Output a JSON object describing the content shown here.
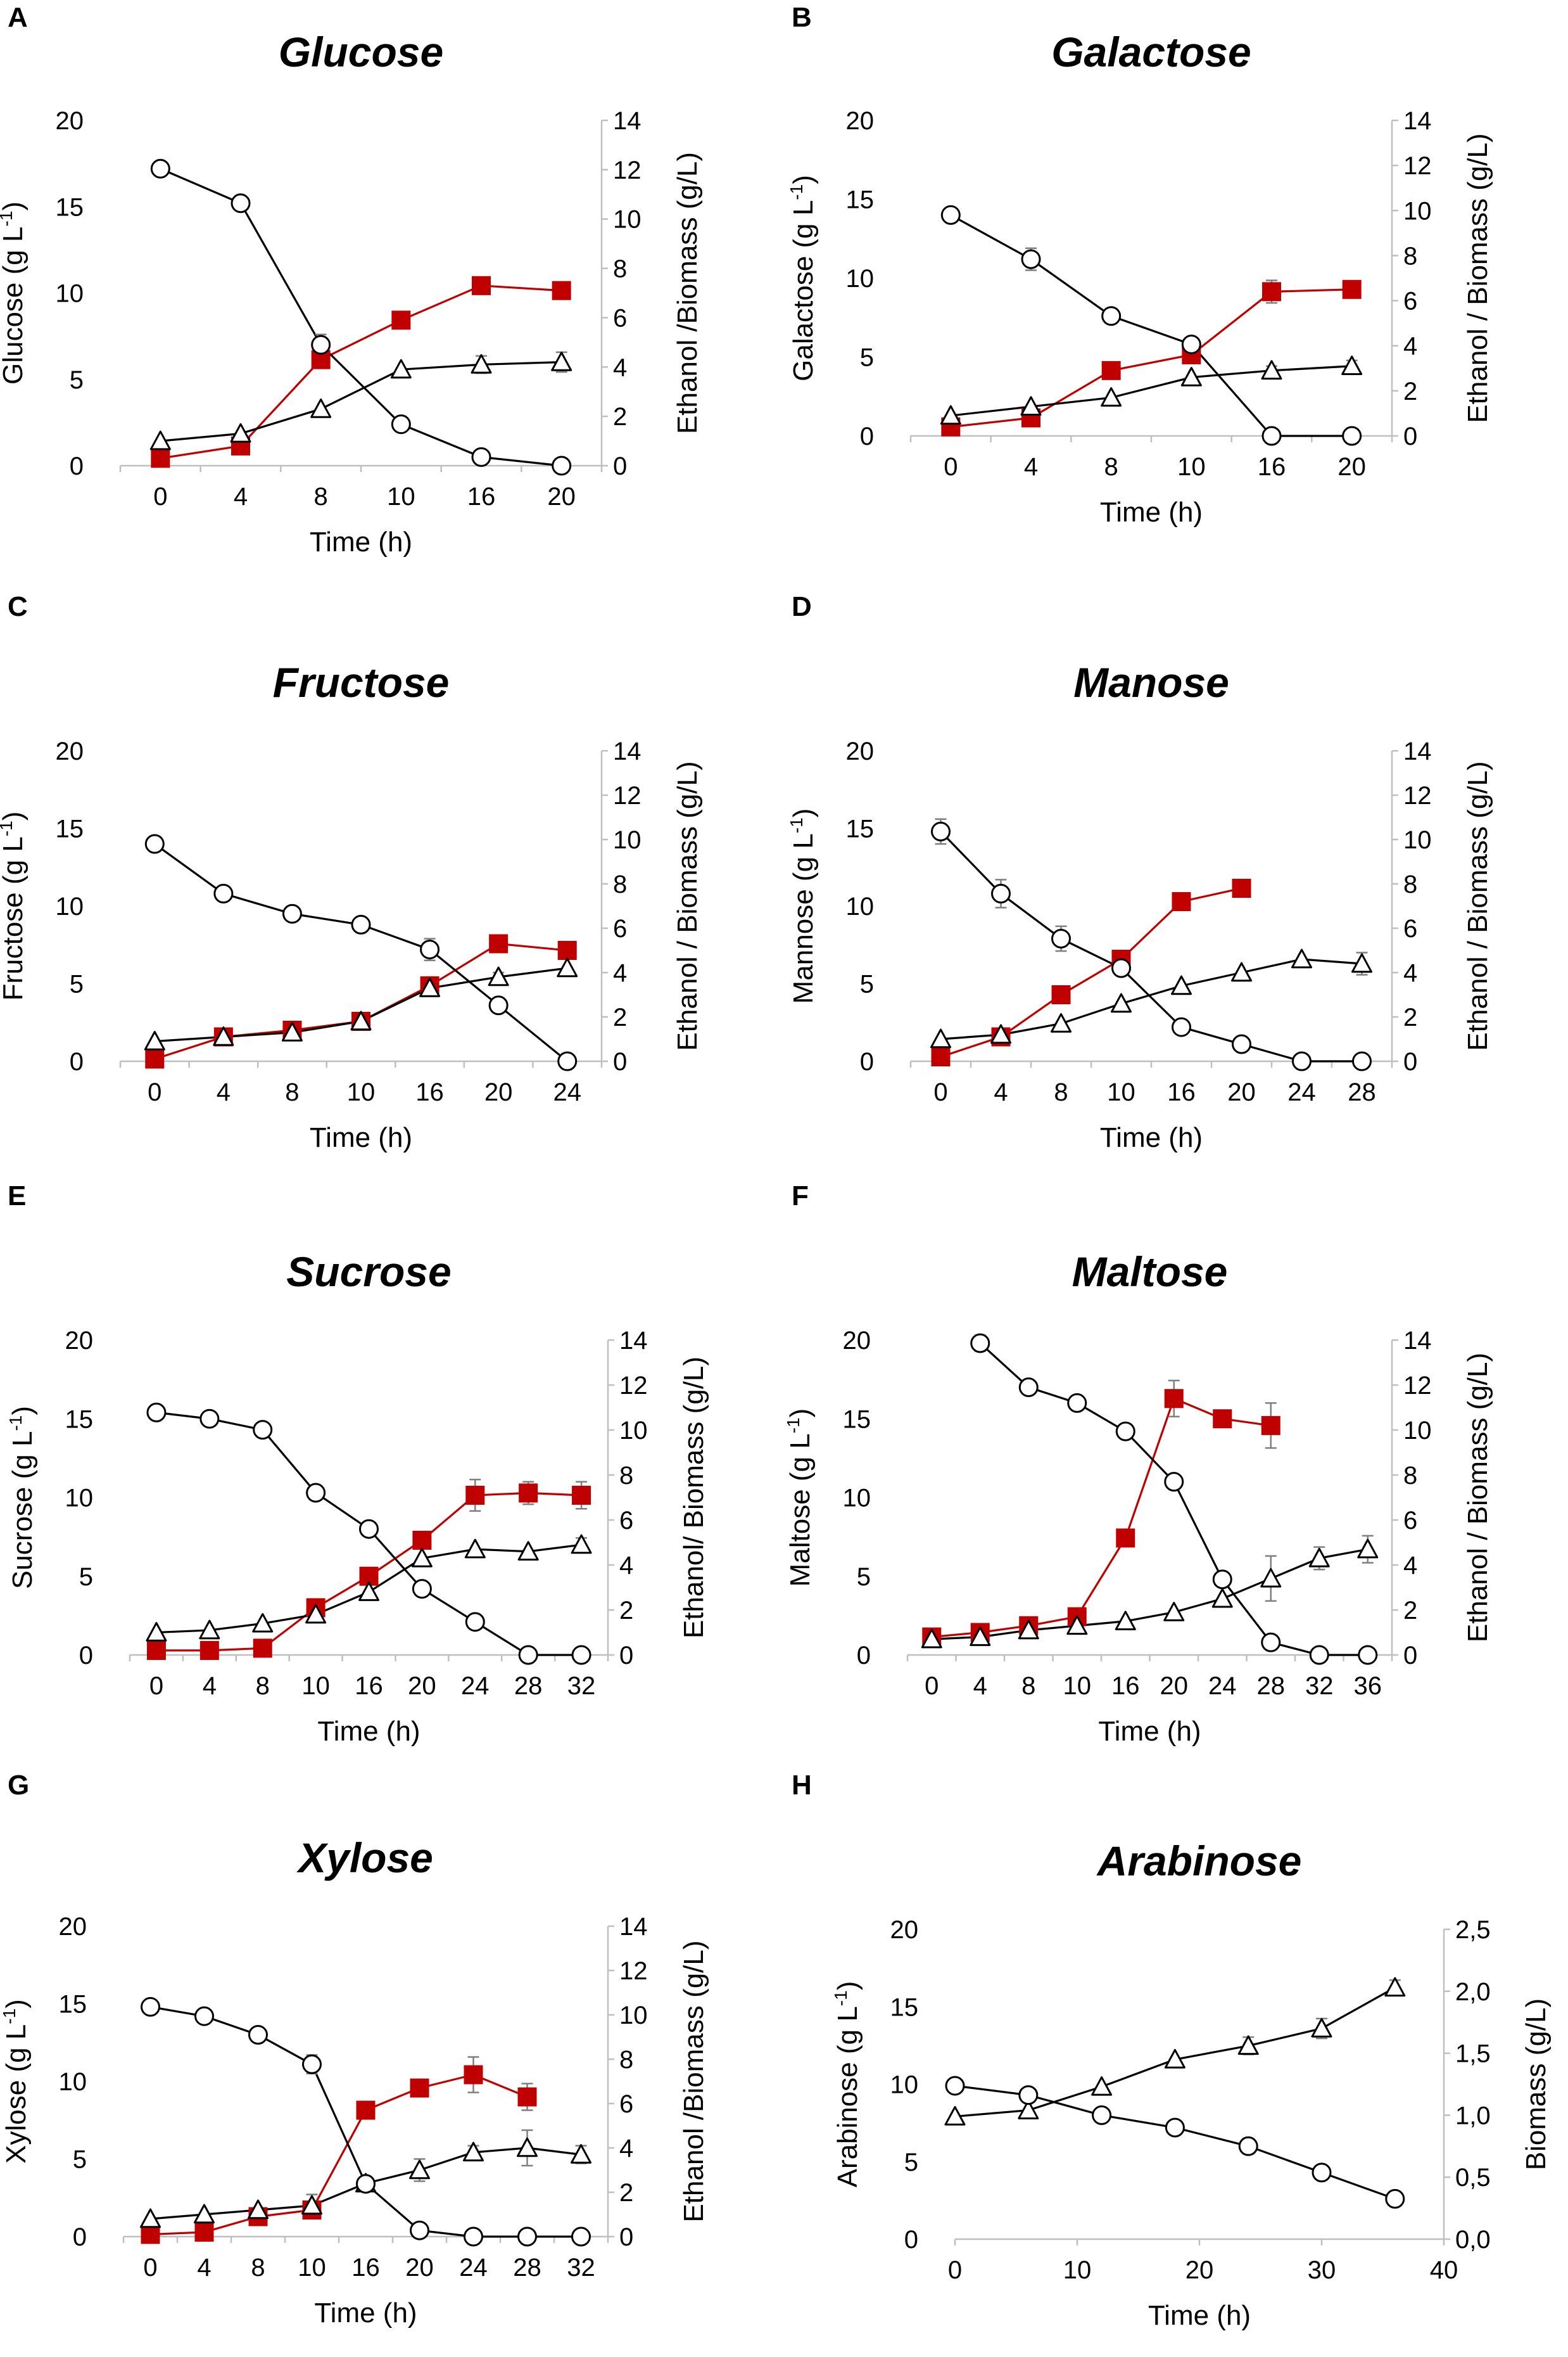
{
  "figure": {
    "colors": {
      "ethanol": "#c00000",
      "sugar": "#ffffff",
      "biomass": "#ffffff",
      "line_black": "#000000",
      "axis": "#bfbfbf",
      "error": "#7f7f7f"
    },
    "time_axis_label": "Time (h)"
  },
  "chart_data": [
    {
      "panel": "A",
      "title": "Glucose",
      "type": "line",
      "x_mode": "categorical",
      "categories": [
        "0",
        "4",
        "8",
        "10",
        "16",
        "20"
      ],
      "ylabel": "Glucose (g L",
      "ylabel_sup": "-1",
      "ylabel_close": ")",
      "y2label": "Ethanol /Biomass (g/L)",
      "ylim": [
        0,
        20
      ],
      "yticks": [
        "0",
        "5",
        "10",
        "15",
        "20"
      ],
      "y2lim": [
        0,
        14
      ],
      "y2ticks": [
        "0",
        "2",
        "4",
        "6",
        "8",
        "10",
        "12",
        "14"
      ],
      "xlabel": "Time (h)",
      "series": [
        {
          "name": "Glucose",
          "axis": "left",
          "marker": "circle",
          "values": [
            17.2,
            15.2,
            7.0,
            2.4,
            0.5,
            0.0
          ],
          "errors": [
            0,
            0,
            0.6,
            0,
            0,
            0
          ]
        },
        {
          "name": "Ethanol",
          "axis": "right",
          "marker": "square",
          "values": [
            0.3,
            0.8,
            4.3,
            5.9,
            7.3,
            7.1
          ],
          "errors": [
            0,
            0,
            0.3,
            0.3,
            0.3,
            0.3
          ]
        },
        {
          "name": "Biomass",
          "axis": "right",
          "marker": "triangle",
          "values": [
            1.0,
            1.3,
            2.3,
            3.9,
            4.1,
            4.2
          ],
          "errors": [
            0,
            0,
            0,
            0,
            0.35,
            0.4
          ]
        }
      ]
    },
    {
      "panel": "B",
      "title": "Galactose",
      "type": "line",
      "x_mode": "categorical",
      "categories": [
        "0",
        "4",
        "8",
        "10",
        "16",
        "20"
      ],
      "ylabel": "Galactose (g L",
      "ylabel_sup": "-1",
      "ylabel_close": ")",
      "y2label": "Ethanol / Biomass (g/L)",
      "ylim": [
        0,
        20
      ],
      "yticks": [
        "0",
        "5",
        "10",
        "15",
        "20"
      ],
      "y2lim": [
        0,
        14
      ],
      "y2ticks": [
        "0",
        "2",
        "4",
        "6",
        "8",
        "10",
        "12",
        "14"
      ],
      "xlabel": "Time (h)",
      "series": [
        {
          "name": "Galactose",
          "axis": "left",
          "marker": "circle",
          "values": [
            14.0,
            11.2,
            7.6,
            5.8,
            0.0,
            0.0
          ],
          "errors": [
            0,
            0.7,
            0.3,
            0,
            0,
            0
          ]
        },
        {
          "name": "Ethanol",
          "axis": "right",
          "marker": "square",
          "values": [
            0.4,
            0.8,
            2.9,
            3.6,
            6.4,
            6.5
          ],
          "errors": [
            0,
            0,
            0,
            0,
            0.5,
            0.2
          ]
        },
        {
          "name": "Biomass",
          "axis": "right",
          "marker": "triangle",
          "values": [
            0.9,
            1.3,
            1.7,
            2.6,
            2.9,
            3.1
          ],
          "errors": [
            0,
            0,
            0,
            0,
            0.2,
            0.25
          ]
        }
      ]
    },
    {
      "panel": "C",
      "title": "Fructose",
      "type": "line",
      "x_mode": "categorical",
      "categories": [
        "0",
        "4",
        "8",
        "10",
        "16",
        "20",
        "24"
      ],
      "ylabel": "Fructose (g L",
      "ylabel_sup": "-1",
      "ylabel_close": ")",
      "y2label": "Ethanol / Biomass (g/L)",
      "ylim": [
        0,
        20
      ],
      "yticks": [
        "0",
        "5",
        "10",
        "15",
        "20"
      ],
      "y2lim": [
        0,
        14
      ],
      "y2ticks": [
        "0",
        "2",
        "4",
        "6",
        "8",
        "10",
        "12",
        "14"
      ],
      "xlabel": "Time (h)",
      "series": [
        {
          "name": "Fructose",
          "axis": "left",
          "marker": "circle",
          "values": [
            14.0,
            10.8,
            9.5,
            8.8,
            7.2,
            3.6,
            0.0
          ],
          "errors": [
            0,
            0,
            0,
            0,
            0.7,
            0,
            0
          ]
        },
        {
          "name": "Ethanol",
          "axis": "right",
          "marker": "square",
          "values": [
            0.1,
            1.1,
            1.4,
            1.8,
            3.4,
            5.3,
            5.0
          ],
          "errors": [
            0,
            0,
            0,
            0,
            0.4,
            0.2,
            0
          ]
        },
        {
          "name": "Biomass",
          "axis": "right",
          "marker": "triangle",
          "values": [
            0.9,
            1.1,
            1.3,
            1.8,
            3.3,
            3.8,
            4.2
          ],
          "errors": [
            0,
            0,
            0,
            0,
            0.3,
            0.2,
            0
          ]
        }
      ]
    },
    {
      "panel": "D",
      "title": "Manose",
      "type": "line",
      "x_mode": "categorical",
      "categories": [
        "0",
        "4",
        "8",
        "10",
        "16",
        "20",
        "24",
        "28"
      ],
      "ylabel": "Mannose  (g L",
      "ylabel_sup": "-1",
      "ylabel_close": ")",
      "y2label": "Ethanol / Biomass (g/L)",
      "ylim": [
        0,
        20
      ],
      "yticks": [
        "0",
        "5",
        "10",
        "15",
        "20"
      ],
      "y2lim": [
        0,
        14
      ],
      "y2ticks": [
        "0",
        "2",
        "4",
        "6",
        "8",
        "10",
        "12",
        "14"
      ],
      "xlabel": "Time (h)",
      "series": [
        {
          "name": "Mannose",
          "axis": "left",
          "marker": "circle",
          "values": [
            14.8,
            10.8,
            7.9,
            6.0,
            2.2,
            1.1,
            0.0,
            0.0
          ],
          "errors": [
            0.8,
            0.9,
            0.8,
            0,
            0,
            0,
            0,
            0
          ]
        },
        {
          "name": "Ethanol",
          "axis": "right",
          "marker": "square",
          "values": [
            0.2,
            1.1,
            3.0,
            4.6,
            7.2,
            7.8,
            null,
            null
          ],
          "errors": [
            0,
            0,
            0,
            0,
            0,
            0,
            0,
            0
          ]
        },
        {
          "name": "Biomass",
          "axis": "right",
          "marker": "triangle",
          "values": [
            1.0,
            1.2,
            1.7,
            2.6,
            3.4,
            4.0,
            4.6,
            4.4
          ],
          "errors": [
            0,
            0,
            0,
            0,
            0,
            0,
            0,
            0.5
          ]
        }
      ]
    },
    {
      "panel": "E",
      "title": "Sucrose",
      "type": "line",
      "x_mode": "categorical",
      "categories": [
        "0",
        "4",
        "8",
        "10",
        "16",
        "20",
        "24",
        "28",
        "32"
      ],
      "ylabel": "Sucrose (g L",
      "ylabel_sup": "-1",
      "ylabel_close": ")",
      "y2label": "Ethanol/ Biomass (g/L)",
      "ylim": [
        0,
        20
      ],
      "yticks": [
        "0",
        "5",
        "10",
        "15",
        "20"
      ],
      "y2lim": [
        0,
        14
      ],
      "y2ticks": [
        "0",
        "2",
        "4",
        "6",
        "8",
        "10",
        "12",
        "14"
      ],
      "xlabel": "Time (h)",
      "series": [
        {
          "name": "Sucrose",
          "axis": "left",
          "marker": "circle",
          "values": [
            15.4,
            15.0,
            14.3,
            10.3,
            8.0,
            4.2,
            2.1,
            0.0,
            0.0
          ],
          "errors": [
            0,
            0.4,
            0,
            0,
            0,
            0,
            0,
            0,
            0
          ]
        },
        {
          "name": "Ethanol",
          "axis": "right",
          "marker": "square",
          "values": [
            0.2,
            0.2,
            0.3,
            2.1,
            3.5,
            5.1,
            7.1,
            7.2,
            7.1
          ],
          "errors": [
            0,
            0,
            0,
            0,
            0,
            0,
            0.7,
            0.5,
            0.6
          ]
        },
        {
          "name": "Biomass",
          "axis": "right",
          "marker": "triangle",
          "values": [
            1.0,
            1.1,
            1.4,
            1.8,
            2.8,
            4.3,
            4.7,
            4.6,
            4.9
          ],
          "errors": [
            0,
            0,
            0,
            0,
            0,
            0,
            0,
            0,
            0.3
          ]
        }
      ]
    },
    {
      "panel": "F",
      "title": "Maltose",
      "type": "line",
      "x_mode": "categorical",
      "categories": [
        "0",
        "4",
        "8",
        "10",
        "16",
        "20",
        "24",
        "28",
        "32",
        "36"
      ],
      "ylabel": "Maltose (g L",
      "ylabel_sup": "-1",
      "ylabel_close": ")",
      "y2label": "Ethanol / Biomass (g/L)",
      "ylim": [
        0,
        20
      ],
      "yticks": [
        "0",
        "5",
        "10",
        "15",
        "20"
      ],
      "y2lim": [
        0,
        14
      ],
      "y2ticks": [
        "0",
        "2",
        "4",
        "6",
        "8",
        "10",
        "12",
        "14"
      ],
      "xlabel": "Time (h)",
      "series": [
        {
          "name": "Maltose",
          "axis": "left",
          "marker": "circle",
          "values": [
            null,
            19.8,
            17.0,
            16.0,
            14.2,
            11.0,
            4.8,
            0.8,
            0.0,
            0.0
          ],
          "errors": [
            0,
            0.5,
            0,
            0,
            0,
            0,
            0,
            0.4,
            0,
            0
          ]
        },
        {
          "name": "Ethanol",
          "axis": "right",
          "marker": "square",
          "values": [
            0.8,
            1.0,
            1.3,
            1.7,
            5.2,
            11.4,
            10.5,
            10.2,
            null,
            null
          ],
          "errors": [
            0,
            0,
            0,
            0,
            0,
            0.8,
            0,
            1.0,
            0,
            0
          ]
        },
        {
          "name": "Biomass",
          "axis": "right",
          "marker": "triangle",
          "values": [
            0.7,
            0.8,
            1.1,
            1.3,
            1.5,
            1.9,
            2.5,
            3.4,
            4.3,
            4.7
          ],
          "errors": [
            0,
            0,
            0,
            0,
            0,
            0,
            0,
            1.0,
            0.5,
            0.6
          ]
        }
      ]
    },
    {
      "panel": "G",
      "title": "Xylose",
      "type": "line",
      "x_mode": "categorical",
      "categories": [
        "0",
        "4",
        "8",
        "10",
        "16",
        "20",
        "24",
        "28",
        "32"
      ],
      "ylabel": "Xylose (g L",
      "ylabel_sup": "-1",
      "ylabel_close": ")",
      "y2label": "Ethanol /Biomass (g/L)",
      "ylim": [
        0,
        20
      ],
      "yticks": [
        "0",
        "5",
        "10",
        "15",
        "20"
      ],
      "y2lim": [
        0,
        14
      ],
      "y2ticks": [
        "0",
        "2",
        "4",
        "6",
        "8",
        "10",
        "12",
        "14"
      ],
      "xlabel": "Time (h)",
      "series": [
        {
          "name": "Xylose",
          "axis": "left",
          "marker": "circle",
          "values": [
            14.8,
            14.2,
            13.0,
            11.1,
            3.4,
            0.4,
            0.0,
            0.0,
            0.0
          ],
          "errors": [
            0,
            0,
            0,
            0.6,
            0,
            0,
            0,
            0,
            0
          ]
        },
        {
          "name": "Ethanol",
          "axis": "right",
          "marker": "square",
          "values": [
            0.1,
            0.2,
            0.9,
            1.2,
            5.7,
            6.7,
            7.3,
            6.3,
            null
          ],
          "errors": [
            0,
            0,
            0,
            0,
            0,
            0,
            0.8,
            0.6,
            0
          ]
        },
        {
          "name": "Biomass",
          "axis": "right",
          "marker": "triangle",
          "values": [
            0.8,
            1.0,
            1.2,
            1.4,
            2.4,
            3.0,
            3.8,
            4.0,
            3.7
          ],
          "errors": [
            0,
            0,
            0,
            0.5,
            0,
            0.5,
            0.3,
            0.8,
            0.4
          ]
        }
      ]
    },
    {
      "panel": "H",
      "title": "Arabinose",
      "type": "line",
      "x_mode": "numeric",
      "xlim": [
        0,
        40
      ],
      "xticks": [
        "0",
        "10",
        "20",
        "30",
        "40"
      ],
      "ylabel": "Arabinose (g L",
      "ylabel_sup": "-1",
      "ylabel_close": ")",
      "y2label": "Biomass (g/L)",
      "ylim": [
        0,
        20
      ],
      "yticks": [
        "0",
        "5",
        "10",
        "15",
        "20"
      ],
      "y2lim": [
        0,
        2.5
      ],
      "y2ticks": [
        "0,0",
        "0,5",
        "1,0",
        "1,5",
        "2,0",
        "2,5"
      ],
      "xlabel": "Time (h)",
      "series": [
        {
          "name": "Arabinose",
          "axis": "left",
          "marker": "circle",
          "x": [
            0,
            6,
            12,
            18,
            24,
            30,
            36
          ],
          "values": [
            9.9,
            9.3,
            8.0,
            7.2,
            6.0,
            4.3,
            2.6
          ],
          "errors": [
            0,
            0,
            0,
            0,
            0.5,
            0,
            0
          ]
        },
        {
          "name": "Biomass",
          "axis": "right",
          "marker": "triangle",
          "x": [
            0,
            6,
            12,
            18,
            24,
            30,
            36
          ],
          "values": [
            0.99,
            1.04,
            1.23,
            1.45,
            1.56,
            1.7,
            2.03
          ],
          "errors": [
            0,
            0,
            0,
            0,
            0.07,
            0.08,
            0.06
          ]
        }
      ]
    }
  ]
}
